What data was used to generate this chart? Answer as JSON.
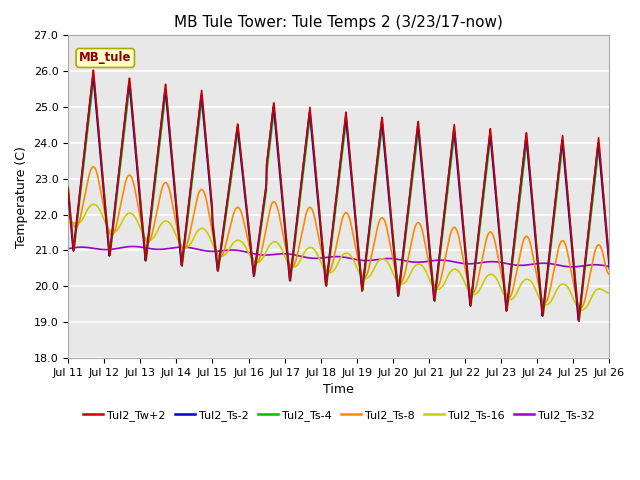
{
  "title": "MB Tule Tower: Tule Temps 2 (3/23/17-now)",
  "xlabel": "Time",
  "ylabel": "Temperature (C)",
  "xlim": [
    0,
    15
  ],
  "ylim": [
    18.0,
    27.0
  ],
  "yticks": [
    18.0,
    19.0,
    20.0,
    21.0,
    22.0,
    23.0,
    24.0,
    25.0,
    26.0,
    27.0
  ],
  "xtick_labels": [
    "Jul 11",
    "Jul 12",
    "Jul 13",
    "Jul 14",
    "Jul 15",
    "Jul 16",
    "Jul 17",
    "Jul 18",
    "Jul 19",
    "Jul 20",
    "Jul 21",
    "Jul 22",
    "Jul 23",
    "Jul 24",
    "Jul 25",
    "Jul 26"
  ],
  "xtick_positions": [
    0,
    1,
    2,
    3,
    4,
    5,
    6,
    7,
    8,
    9,
    10,
    11,
    12,
    13,
    14,
    15
  ],
  "legend_label": "MB_tule",
  "series": {
    "Tul2_Tw+2": {
      "color": "#cc0000",
      "lw": 1.2
    },
    "Tul2_Ts-2": {
      "color": "#0000cc",
      "lw": 1.2
    },
    "Tul2_Ts-4": {
      "color": "#00bb00",
      "lw": 1.2
    },
    "Tul2_Ts-8": {
      "color": "#ff8800",
      "lw": 1.2
    },
    "Tul2_Ts-16": {
      "color": "#cccc00",
      "lw": 1.2
    },
    "Tul2_Ts-32": {
      "color": "#9900cc",
      "lw": 1.2
    }
  },
  "bg_color": "#e8e8e8",
  "grid_color": "white",
  "title_fontsize": 11,
  "axis_fontsize": 9,
  "tick_fontsize": 8,
  "figsize": [
    6.4,
    4.8
  ],
  "dpi": 100
}
